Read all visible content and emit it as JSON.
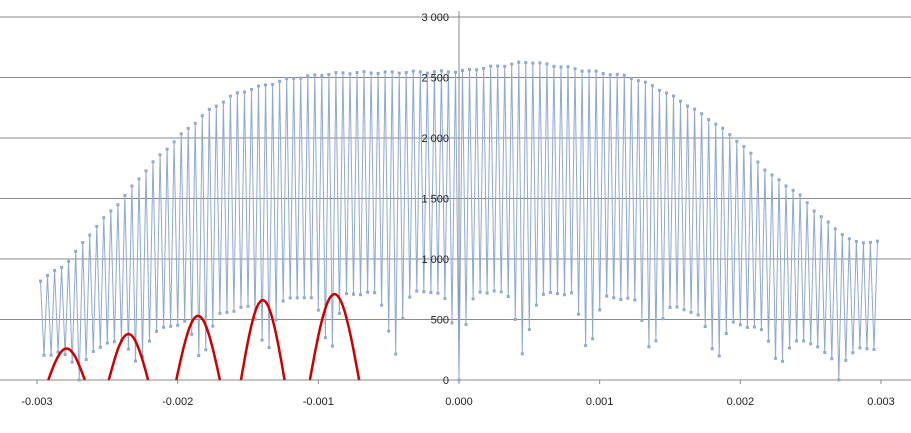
{
  "chart_data": {
    "type": "line",
    "title": "",
    "xlabel": "",
    "ylabel": "",
    "xlim": [
      -0.003,
      0.003
    ],
    "ylim": [
      0,
      3000
    ],
    "x_ticks": [
      -0.003,
      -0.002,
      -0.001,
      0.0,
      0.001,
      0.002,
      0.003
    ],
    "x_tick_labels": [
      "-0.003",
      "-0.002",
      "-0.001",
      "0.000",
      "0.001",
      "0.002",
      "0.003"
    ],
    "y_ticks": [
      0,
      500,
      1000,
      1500,
      2000,
      2500,
      3000
    ],
    "y_tick_labels": [
      "0",
      "500",
      "1 000",
      "1 500",
      "2 000",
      "2 500",
      "3 000"
    ],
    "grid": "horizontal",
    "axes_cross_at_origin": true,
    "colors": {
      "series": "#8fa9cf",
      "markers": "#8fa9cf",
      "highlight": "#cc0000",
      "grid": "#8a8a8a",
      "axis": "#8a8a8a"
    },
    "series": [
      {
        "style": "line-with-square-markers",
        "sample_spacing": 2.5e-05,
        "x_start": -0.002975,
        "x_end": 0.002975,
        "upper_envelope_points": [
          [
            -0.003,
            820
          ],
          [
            -0.0028,
            960
          ],
          [
            -0.0026,
            1250
          ],
          [
            -0.0024,
            1500
          ],
          [
            -0.0022,
            1780
          ],
          [
            -0.002,
            2010
          ],
          [
            -0.0018,
            2220
          ],
          [
            -0.0016,
            2370
          ],
          [
            -0.0014,
            2440
          ],
          [
            -0.0012,
            2500
          ],
          [
            -0.001,
            2530
          ],
          [
            -0.0008,
            2550
          ],
          [
            -0.0006,
            2550
          ],
          [
            0.0,
            2560
          ],
          [
            0.0005,
            2640
          ],
          [
            0.001,
            2550
          ],
          [
            0.0012,
            2520
          ],
          [
            0.0014,
            2430
          ],
          [
            0.0016,
            2300
          ],
          [
            0.0018,
            2150
          ],
          [
            0.002,
            1970
          ],
          [
            0.0022,
            1720
          ],
          [
            0.0024,
            1560
          ],
          [
            0.0026,
            1330
          ],
          [
            0.0028,
            1150
          ],
          [
            0.003,
            1150
          ]
        ],
        "lower_envelope_points": [
          [
            -0.003,
            200
          ],
          [
            -0.0026,
            260
          ],
          [
            -0.0022,
            400
          ],
          [
            -0.0018,
            520
          ],
          [
            -0.0014,
            640
          ],
          [
            -0.001,
            700
          ],
          [
            -0.0006,
            720
          ],
          [
            0.0,
            730
          ],
          [
            0.0006,
            720
          ],
          [
            0.001,
            700
          ],
          [
            0.0014,
            640
          ],
          [
            0.0018,
            520
          ],
          [
            0.0022,
            400
          ],
          [
            0.0026,
            260
          ],
          [
            0.003,
            260
          ]
        ],
        "dip_centers": [
          -0.0027,
          -0.00228,
          -0.00183,
          -0.00137,
          -0.00092,
          -0.00046,
          0.0,
          0.00046,
          0.00092,
          0.00137,
          0.00183,
          0.00228,
          0.0027
        ],
        "dip_half_width": 0.00012,
        "dip_floor": 0
      }
    ],
    "highlight_arcs": [
      {
        "x_start": -0.00292,
        "x_end": -0.00266,
        "peak": 260
      },
      {
        "x_start": -0.00249,
        "x_end": -0.00221,
        "peak": 380
      },
      {
        "x_start": -0.00201,
        "x_end": -0.0017,
        "peak": 530
      },
      {
        "x_start": -0.00155,
        "x_end": -0.00124,
        "peak": 660
      },
      {
        "x_start": -0.00106,
        "x_end": -0.00071,
        "peak": 710
      }
    ]
  }
}
